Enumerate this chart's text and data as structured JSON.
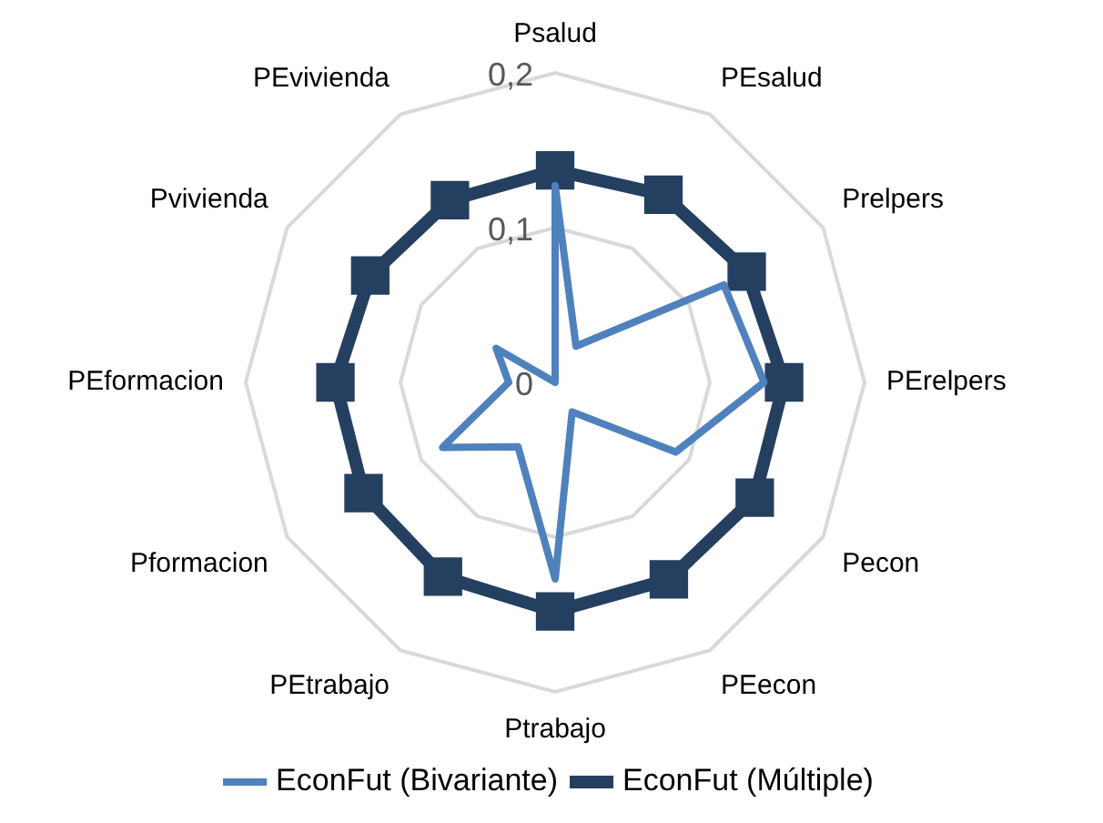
{
  "chart_data": {
    "type": "radar",
    "categories": [
      "Psalud",
      "PEsalud",
      "Prelpers",
      "PErelpers",
      "Pecon",
      "PEecon",
      "Ptrabajo",
      "PEtrabajo",
      "Pformacion",
      "PEformacion",
      "Pvivienda",
      "PEvivienda"
    ],
    "series": [
      {
        "name": "EconFut (Bivariante)",
        "color": "#4f81bd",
        "marker": "none",
        "values": [
          0.127,
          0.027,
          0.126,
          0.135,
          0.09,
          0.022,
          0.127,
          0.048,
          0.084,
          0.03,
          0.044,
          0.0
        ]
      },
      {
        "name": "EconFut (Múltiple)",
        "color": "#243f60",
        "marker": "square",
        "values": [
          0.137,
          0.14,
          0.143,
          0.148,
          0.149,
          0.147,
          0.148,
          0.145,
          0.143,
          0.142,
          0.138,
          0.136
        ]
      }
    ],
    "ylim": [
      0,
      0.2
    ],
    "yticks": [
      {
        "value": 0,
        "label": "0"
      },
      {
        "value": 0.1,
        "label": "0,1"
      },
      {
        "value": 0.2,
        "label": "0,2"
      }
    ],
    "grid": true,
    "legend": "bottom"
  }
}
